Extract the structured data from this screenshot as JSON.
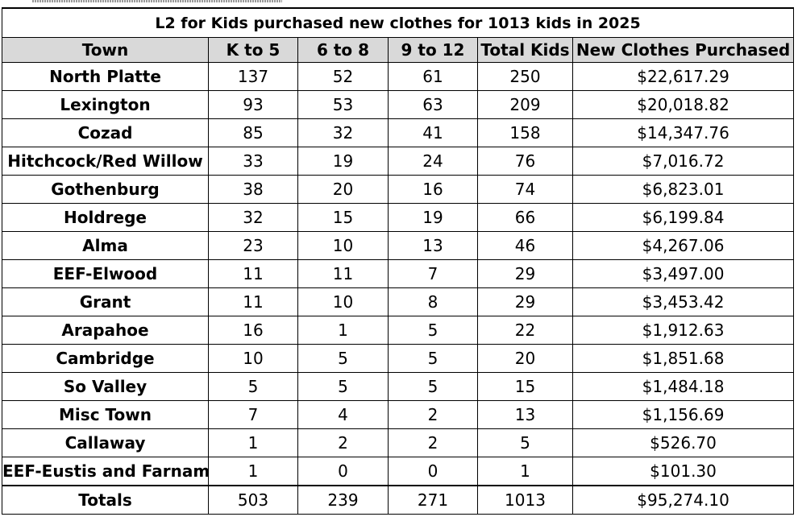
{
  "title": "L2 for Kids purchased new clothes for 1013 kids in 2025",
  "columns": [
    "Town",
    "K to 5",
    "6 to 8",
    "9 to 12",
    "Total Kids",
    "New Clothes Purchased"
  ],
  "rows": [
    {
      "town": "North Platte",
      "k5": "137",
      "g68": "52",
      "g912": "61",
      "total": "250",
      "purchased": "$22,617.29"
    },
    {
      "town": "Lexington",
      "k5": "93",
      "g68": "53",
      "g912": "63",
      "total": "209",
      "purchased": "$20,018.82"
    },
    {
      "town": "Cozad",
      "k5": "85",
      "g68": "32",
      "g912": "41",
      "total": "158",
      "purchased": "$14,347.76"
    },
    {
      "town": "Hitchcock/Red Willow",
      "k5": "33",
      "g68": "19",
      "g912": "24",
      "total": "76",
      "purchased": "$7,016.72"
    },
    {
      "town": "Gothenburg",
      "k5": "38",
      "g68": "20",
      "g912": "16",
      "total": "74",
      "purchased": "$6,823.01"
    },
    {
      "town": "Holdrege",
      "k5": "32",
      "g68": "15",
      "g912": "19",
      "total": "66",
      "purchased": "$6,199.84"
    },
    {
      "town": "Alma",
      "k5": "23",
      "g68": "10",
      "g912": "13",
      "total": "46",
      "purchased": "$4,267.06"
    },
    {
      "town": "EEF-Elwood",
      "k5": "11",
      "g68": "11",
      "g912": "7",
      "total": "29",
      "purchased": "$3,497.00"
    },
    {
      "town": "Grant",
      "k5": "11",
      "g68": "10",
      "g912": "8",
      "total": "29",
      "purchased": "$3,453.42"
    },
    {
      "town": "Arapahoe",
      "k5": "16",
      "g68": "1",
      "g912": "5",
      "total": "22",
      "purchased": "$1,912.63"
    },
    {
      "town": "Cambridge",
      "k5": "10",
      "g68": "5",
      "g912": "5",
      "total": "20",
      "purchased": "$1,851.68"
    },
    {
      "town": "So Valley",
      "k5": "5",
      "g68": "5",
      "g912": "5",
      "total": "15",
      "purchased": "$1,484.18"
    },
    {
      "town": "Misc Town",
      "k5": "7",
      "g68": "4",
      "g912": "2",
      "total": "13",
      "purchased": "$1,156.69"
    },
    {
      "town": "Callaway",
      "k5": "1",
      "g68": "2",
      "g912": "2",
      "total": "5",
      "purchased": "$526.70"
    },
    {
      "town": "EEF-Eustis and Farnam",
      "k5": "1",
      "g68": "0",
      "g912": "0",
      "total": "1",
      "purchased": "$101.30"
    }
  ],
  "totals": {
    "label": "Totals",
    "k5": "503",
    "g68": "239",
    "g912": "271",
    "total": "1013",
    "purchased": "$95,274.10"
  },
  "colors": {
    "header_fill": "#d9d9d9",
    "border": "#000000"
  }
}
